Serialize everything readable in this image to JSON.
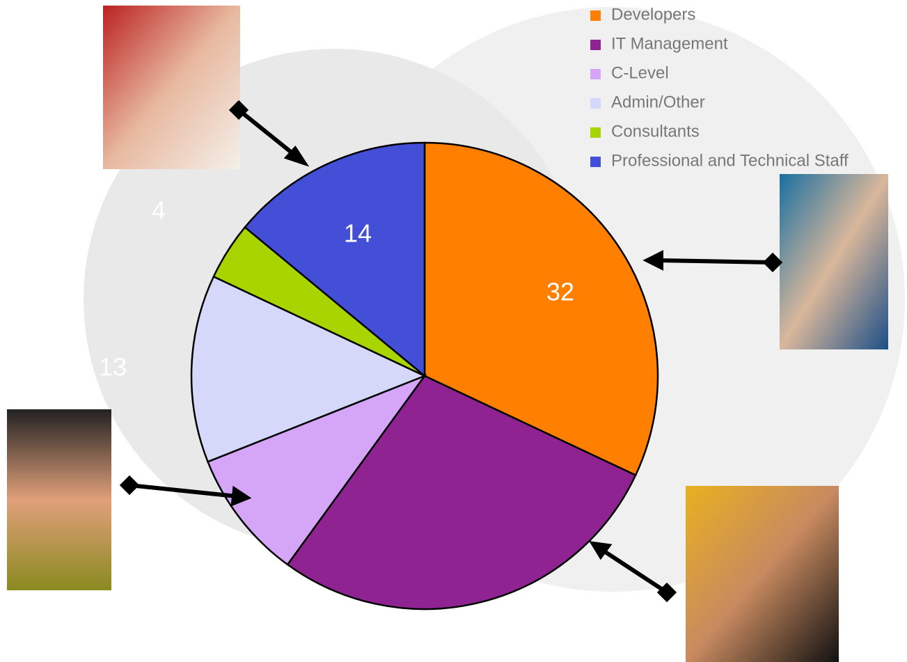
{
  "chart_data": {
    "type": "pie",
    "categories": [
      "Developers",
      "IT Management",
      "C-Level",
      "Admin/Other",
      "Consultants",
      "Professional and Technical Staff"
    ],
    "values": [
      32,
      28,
      9,
      13,
      4,
      14
    ],
    "colors": [
      "#ff7f00",
      "#8e2391",
      "#d5a6f8",
      "#d6d8fa",
      "#a8d400",
      "#434fd6"
    ]
  }
}
